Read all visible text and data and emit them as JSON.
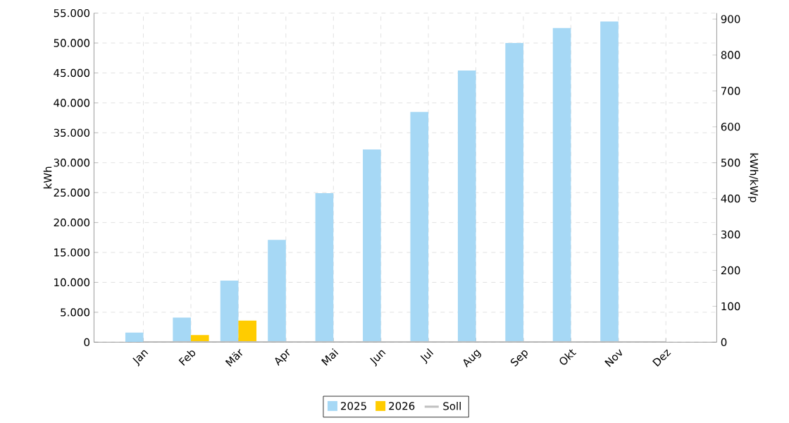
{
  "chart_data": {
    "type": "bar",
    "categories": [
      "Jan",
      "Feb",
      "Mär",
      "Apr",
      "Mai",
      "Jun",
      "Jul",
      "Aug",
      "Sep",
      "Okt",
      "Nov",
      "Dez"
    ],
    "ylabel": "kWh",
    "y2label": "kWh/kWp",
    "series": [
      {
        "name": "2025",
        "type": "bar",
        "color": "#a6d8f5",
        "values": [
          1600,
          4100,
          10300,
          17100,
          24900,
          32200,
          38500,
          45400,
          50000,
          52500,
          53600,
          null
        ]
      },
      {
        "name": "2026",
        "color": "#ffcc00",
        "values": [
          null,
          1200,
          3600,
          null,
          null,
          null,
          null,
          null,
          null,
          null,
          null,
          null
        ]
      },
      {
        "name": "Soll",
        "type": "line",
        "color": "#c0c0c0",
        "values": [
          0,
          0,
          0,
          0,
          0,
          0,
          0,
          0,
          0,
          0,
          0,
          0
        ]
      }
    ],
    "ylim": [
      0,
      55000
    ],
    "yticks": [
      0,
      {
        "value": 5000,
        "label": "5.000"
      },
      {
        "value": 10000,
        "label": "10.000"
      },
      {
        "value": 15000,
        "label": "15.000"
      },
      {
        "value": 20000,
        "label": "20.000"
      },
      {
        "value": 25000,
        "label": "25.000"
      },
      {
        "value": 30000,
        "label": "30.000"
      },
      {
        "value": 35000,
        "label": "35.000"
      },
      {
        "value": 40000,
        "label": "40.000"
      },
      {
        "value": 45000,
        "label": "45.000"
      },
      {
        "value": 50000,
        "label": "50.000"
      },
      {
        "value": 55000,
        "label": "55.000"
      }
    ],
    "y2lim": [
      0,
      916.7
    ],
    "y2ticks": [
      0,
      100,
      200,
      300,
      400,
      500,
      600,
      700,
      800,
      900
    ],
    "grid": true,
    "legend": "bottom"
  }
}
